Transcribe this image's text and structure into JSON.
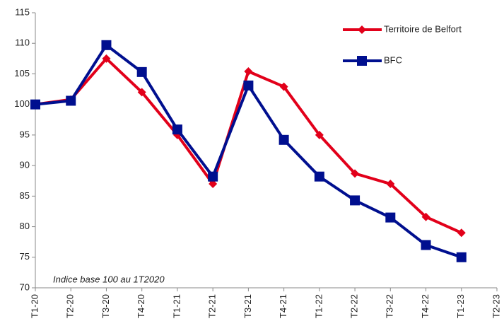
{
  "chart_data": {
    "type": "line",
    "annotation": "Indice base 100 au 1T2020",
    "categories": [
      "T1-20",
      "T2-20",
      "T3-20",
      "T4-20",
      "T1-21",
      "T2-21",
      "T3-21",
      "T4-21",
      "T1-22",
      "T2-22",
      "T3-22",
      "T4-22",
      "T1-23",
      "T2-23"
    ],
    "series": [
      {
        "name": "Territoire de Belfort",
        "color": "#e2001a",
        "marker": "diamond",
        "values": [
          100,
          100.8,
          107.5,
          102,
          95,
          87,
          105.4,
          102.9,
          95,
          88.7,
          87,
          81.6,
          79,
          null
        ]
      },
      {
        "name": "BFC",
        "color": "#000f8f",
        "marker": "square",
        "values": [
          100,
          100.6,
          109.7,
          105.3,
          95.9,
          88.2,
          103.1,
          94.2,
          88.2,
          84.3,
          81.5,
          77,
          75,
          null
        ]
      }
    ],
    "ylim": [
      70,
      115
    ],
    "yticks": [
      70,
      75,
      80,
      85,
      90,
      95,
      100,
      105,
      110,
      115
    ],
    "grid": false
  }
}
